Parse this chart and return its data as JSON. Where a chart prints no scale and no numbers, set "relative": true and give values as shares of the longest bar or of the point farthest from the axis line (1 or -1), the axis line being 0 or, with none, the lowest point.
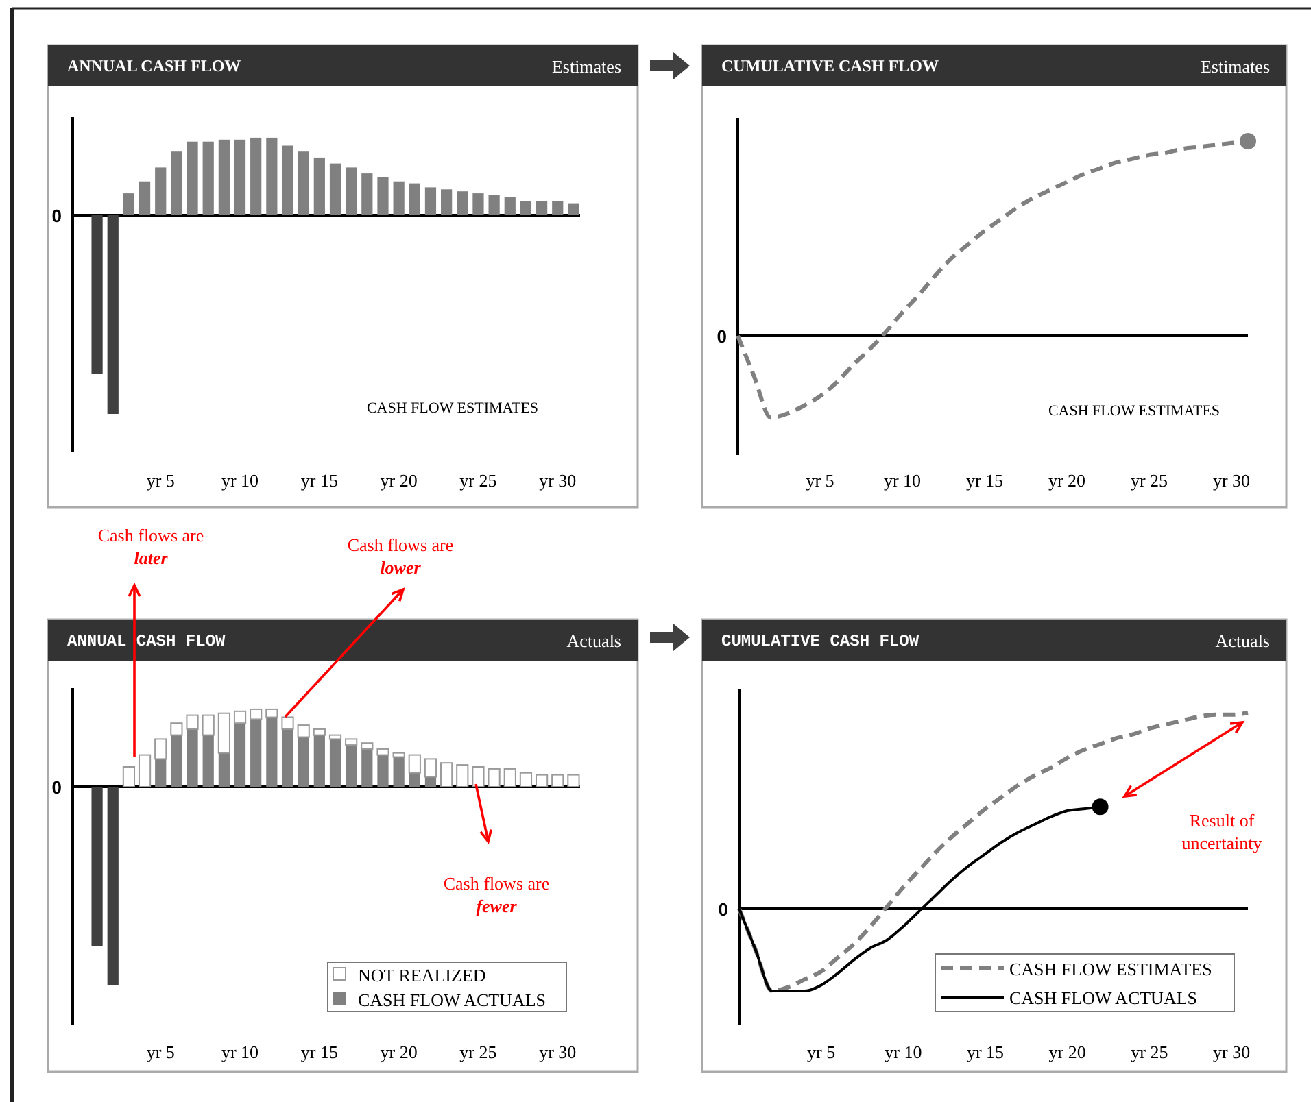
{
  "chart_data": [
    {
      "type": "bar",
      "title": "ANNUAL CASH FLOW",
      "subtitle": "Estimates",
      "relative": true,
      "categories": [
        null,
        null,
        null,
        null,
        "yr 5",
        null,
        null,
        null,
        null,
        "yr 10",
        null,
        null,
        null,
        null,
        "yr 15",
        null,
        null,
        null,
        null,
        "yr 20",
        null,
        null,
        null,
        null,
        "yr 25",
        null,
        null,
        null,
        null,
        "yr 30",
        null
      ],
      "values": [
        -0.8,
        -1,
        0.11,
        0.17,
        0.24,
        0.32,
        0.37,
        0.37,
        0.38,
        0.38,
        0.39,
        0.39,
        0.35,
        0.32,
        0.29,
        0.26,
        0.24,
        0.21,
        0.19,
        0.17,
        0.16,
        0.14,
        0.13,
        0.12,
        0.11,
        0.1,
        0.09,
        0.07,
        0.07,
        0.07,
        0.06
      ],
      "colors": [
        "#404040",
        "#404040",
        "#808080",
        "#808080",
        "#808080",
        "#808080",
        "#808080",
        "#808080",
        "#808080",
        "#808080",
        "#808080",
        "#808080",
        "#808080",
        "#808080",
        "#808080",
        "#808080",
        "#808080",
        "#808080",
        "#808080",
        "#808080",
        "#808080",
        "#808080",
        "#808080",
        "#808080",
        "#808080",
        "#808080",
        "#808080",
        "#808080",
        "#808080",
        "#808080",
        "#808080"
      ],
      "ref_lines": [
        {
          "axis": "y",
          "value": 0,
          "label": "0"
        }
      ],
      "annotations": [
        "CASH FLOW ESTIMATES"
      ]
    },
    {
      "type": "line",
      "title": "CUMULATIVE CASH FLOW",
      "subtitle": "Estimates",
      "relative": true,
      "categories": [
        null,
        null,
        null,
        null,
        null,
        "yr 5",
        null,
        null,
        null,
        null,
        "yr 10",
        null,
        null,
        null,
        null,
        "yr 15",
        null,
        null,
        null,
        null,
        "yr 20",
        null,
        null,
        null,
        null,
        "yr 25",
        null,
        null,
        null,
        null,
        "yr 30",
        null
      ],
      "series": [
        {
          "color": "#808080",
          "line_style": "dashed",
          "values": [
            0,
            -0.21,
            -0.42,
            -0.4,
            -0.36,
            -0.31,
            -0.24,
            -0.15,
            -0.07,
            0.02,
            0.12,
            0.21,
            0.31,
            0.4,
            0.47,
            0.54,
            0.6,
            0.66,
            0.71,
            0.75,
            0.79,
            0.83,
            0.86,
            0.89,
            0.91,
            0.93,
            0.94,
            0.96,
            0.97,
            0.98,
            0.99,
            1
          ]
        },
        {
          "type": "scatter",
          "color": "#808080",
          "values": [
            null,
            null,
            null,
            null,
            null,
            null,
            null,
            null,
            null,
            null,
            null,
            null,
            null,
            null,
            null,
            null,
            null,
            null,
            null,
            null,
            null,
            null,
            null,
            null,
            null,
            null,
            null,
            null,
            null,
            null,
            null,
            1
          ]
        }
      ],
      "ref_lines": [
        {
          "axis": "y",
          "value": 0,
          "label": "0"
        }
      ],
      "annotations": [
        "CASH FLOW ESTIMATES"
      ]
    },
    {
      "type": "bar",
      "title": "ANNUAL CASH FLOW",
      "subtitle": "Actuals",
      "relative": true,
      "stacked": true,
      "legend": "bottom right",
      "categories": [
        null,
        null,
        null,
        null,
        "yr 5",
        null,
        null,
        null,
        null,
        "yr 10",
        null,
        null,
        null,
        null,
        "yr 15",
        null,
        null,
        null,
        null,
        "yr 20",
        null,
        null,
        null,
        null,
        "yr 25",
        null,
        null,
        null,
        null,
        "yr 30",
        null
      ],
      "series": [
        {
          "name": "CASH FLOW ACTUALS",
          "color": "#808080",
          "colors": [
            "#404040",
            "#404040",
            null,
            null,
            "#808080",
            "#808080",
            "#808080",
            "#808080",
            "#808080",
            "#808080",
            "#808080",
            "#808080",
            "#808080",
            "#808080",
            "#808080",
            "#808080",
            "#808080",
            "#808080",
            "#808080",
            "#808080",
            "#808080",
            "#808080",
            null,
            null,
            null,
            null,
            null,
            null,
            null,
            null,
            null
          ],
          "values": [
            -0.8,
            -1,
            null,
            null,
            0.14,
            0.26,
            0.29,
            0.26,
            0.17,
            0.32,
            0.34,
            0.35,
            0.29,
            0.25,
            0.26,
            0.24,
            0.21,
            0.19,
            0.16,
            0.15,
            0.07,
            0.05,
            null,
            null,
            null,
            null,
            null,
            null,
            null,
            null,
            null
          ]
        },
        {
          "name": "NOT REALIZED",
          "color": "#ffffff",
          "values": [
            null,
            null,
            0.1,
            0.16,
            0.1,
            0.06,
            0.07,
            0.1,
            0.2,
            0.06,
            0.05,
            0.04,
            0.06,
            0.06,
            0.03,
            0.02,
            0.03,
            0.03,
            0.03,
            0.02,
            0.09,
            0.09,
            0.12,
            0.11,
            0.1,
            0.09,
            0.09,
            0.07,
            0.06,
            0.06,
            0.06
          ]
        }
      ],
      "ref_lines": [
        {
          "axis": "y",
          "value": 0,
          "label": "0"
        }
      ],
      "annotations": [
        "Cash flows are later",
        "Cash flows are lower",
        "Cash flows are fewer"
      ]
    },
    {
      "type": "line",
      "title": "CUMULATIVE CASH FLOW",
      "subtitle": "Actuals",
      "relative": true,
      "legend": "bottom right",
      "categories": [
        null,
        null,
        null,
        null,
        null,
        "yr 5",
        null,
        null,
        null,
        null,
        "yr 10",
        null,
        null,
        null,
        null,
        "yr 15",
        null,
        null,
        null,
        null,
        "yr 20",
        null,
        null,
        null,
        null,
        "yr 25",
        null,
        null,
        null,
        null,
        "yr 30",
        null
      ],
      "series": [
        {
          "name": "CASH FLOW ESTIMATES",
          "color": "#808080",
          "line_style": "dashed",
          "values": [
            0,
            -0.21,
            -0.42,
            -0.4,
            -0.36,
            -0.32,
            -0.25,
            -0.18,
            -0.09,
            0.01,
            0.11,
            0.2,
            0.29,
            0.37,
            0.44,
            0.51,
            0.57,
            0.63,
            0.68,
            0.72,
            0.77,
            0.81,
            0.84,
            0.87,
            0.89,
            0.92,
            0.94,
            0.96,
            0.98,
            0.99,
            0.99,
            1
          ]
        },
        {
          "name": "CASH FLOW ACTUALS",
          "color": "#000000",
          "line_style": "solid",
          "values": [
            0,
            -0.21,
            -0.42,
            -0.42,
            -0.42,
            -0.39,
            -0.33,
            -0.26,
            -0.2,
            -0.16,
            -0.09,
            -0.01,
            0.07,
            0.15,
            0.22,
            0.28,
            0.34,
            0.39,
            0.43,
            0.47,
            0.5,
            0.51,
            0.52,
            null,
            null,
            null,
            null,
            null,
            null,
            null,
            null,
            null
          ]
        },
        {
          "type": "scatter",
          "color": "#000000",
          "values": [
            null,
            null,
            null,
            null,
            null,
            null,
            null,
            null,
            null,
            null,
            null,
            null,
            null,
            null,
            null,
            null,
            null,
            null,
            null,
            null,
            null,
            null,
            0.52,
            null,
            null,
            null,
            null,
            null,
            null,
            null,
            null,
            null
          ]
        }
      ],
      "ref_lines": [
        {
          "axis": "y",
          "value": 0,
          "label": "0"
        }
      ],
      "annotations": [
        "Result of uncertainty"
      ]
    }
  ]
}
